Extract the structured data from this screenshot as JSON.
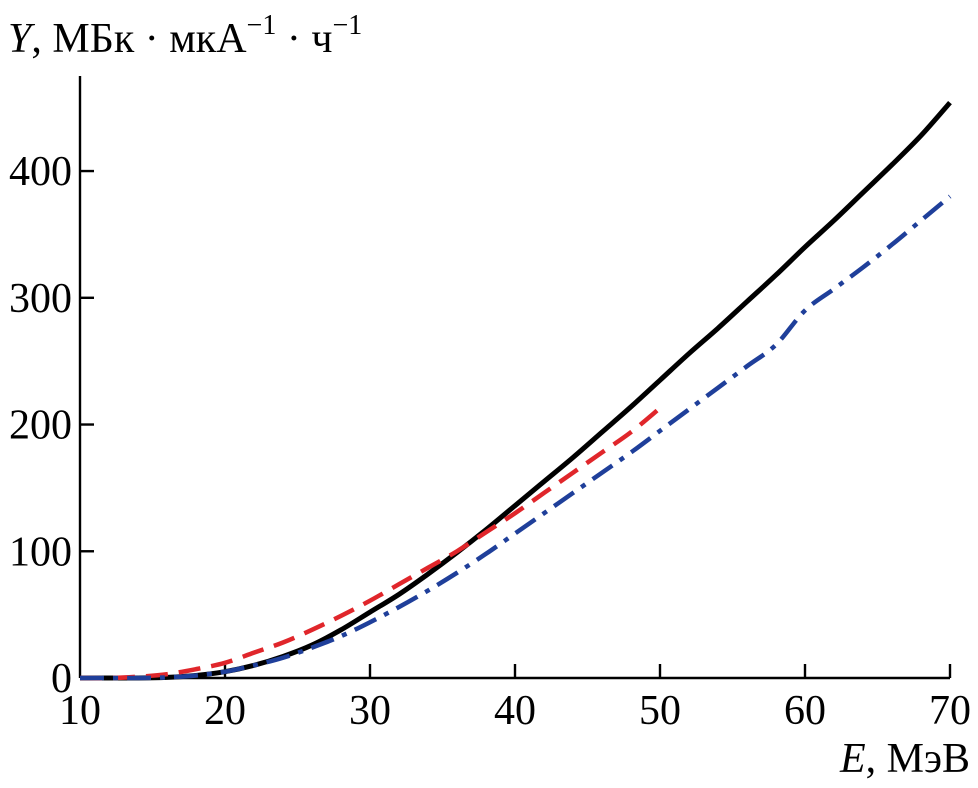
{
  "chart_data": {
    "type": "line",
    "title": "",
    "ylabel_var": "Y",
    "ylabel_rest": ", МБк · мкА",
    "ylabel_exp1": "−1",
    "ylabel_mid": " · ч",
    "ylabel_exp2": "−1",
    "xlabel_var": "E",
    "xlabel_rest": ", МэВ",
    "xlim": [
      10,
      70
    ],
    "ylim": [
      0,
      475
    ],
    "xticks": [
      10,
      20,
      30,
      40,
      50,
      60,
      70
    ],
    "yticks": [
      0,
      100,
      200,
      300,
      400
    ],
    "grid": false,
    "series": [
      {
        "style": "solid",
        "color": "#000000",
        "x": [
          10,
          14,
          16,
          18,
          20,
          22,
          24,
          26,
          28,
          30,
          32,
          34,
          36,
          38,
          40,
          42,
          44,
          46,
          48,
          50,
          52,
          54,
          56,
          58,
          60,
          62,
          64,
          66,
          68,
          70
        ],
        "y": [
          0,
          0,
          0.5,
          2,
          5,
          10,
          17,
          26,
          38,
          52,
          66,
          82,
          99,
          117,
          136,
          155,
          174,
          194,
          214,
          235,
          256,
          276,
          297,
          318,
          340,
          361,
          383,
          405,
          428,
          454
        ]
      },
      {
        "style": "dashed",
        "color": "#e0262b",
        "x": [
          10,
          12,
          14,
          16,
          18,
          20,
          22,
          24,
          26,
          28,
          30,
          32,
          34,
          36,
          38,
          40,
          42,
          44,
          46,
          48,
          50
        ],
        "y": [
          0,
          0,
          1,
          3,
          7,
          12,
          20,
          28,
          38,
          49,
          61,
          74,
          87,
          100,
          115,
          130,
          146,
          162,
          178,
          194,
          213
        ]
      },
      {
        "style": "dash-dot",
        "color": "#1f3f9a",
        "x": [
          10,
          14,
          16,
          18,
          20,
          22,
          24,
          26,
          28,
          30,
          32,
          34,
          36,
          38,
          40,
          42,
          44,
          46,
          48,
          50,
          52,
          54,
          56,
          58,
          60,
          62,
          64,
          66,
          68,
          70
        ],
        "y": [
          0,
          0,
          0.5,
          2,
          5,
          10,
          16,
          24,
          33,
          44,
          56,
          69,
          83,
          98,
          114,
          130,
          146,
          162,
          178,
          195,
          212,
          229,
          246,
          263,
          290,
          307,
          324,
          342,
          361,
          380
        ]
      }
    ]
  }
}
